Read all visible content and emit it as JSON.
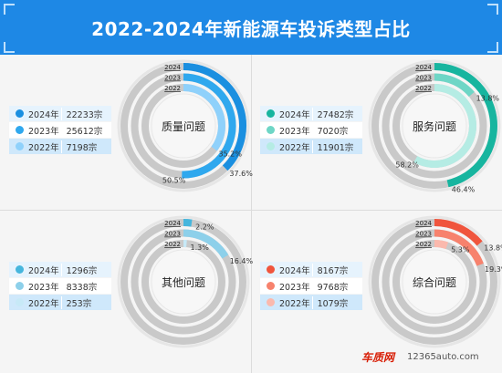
{
  "title": "2022-2024年新能源车投诉类型占比",
  "footer": {
    "logo": "车质网",
    "url": "12365auto.com"
  },
  "chart_data": [
    {
      "type": "pie",
      "center_label": "质量问题",
      "ring_labels": [
        "2024",
        "2023",
        "2022"
      ],
      "legend": [
        {
          "year": "2024年",
          "value": "22233宗"
        },
        {
          "year": "2023年",
          "value": "25612宗"
        },
        {
          "year": "2022年",
          "value": "7198宗"
        }
      ],
      "colors": [
        "#1a8fe0",
        "#2fa8ee",
        "#8fd1fb"
      ],
      "series": [
        {
          "year": "2024",
          "count": 22233,
          "percent": 37.6,
          "label": "37.6%"
        },
        {
          "year": "2023",
          "count": 25612,
          "percent": 50.5,
          "label": "50.5%"
        },
        {
          "year": "2022",
          "count": 7198,
          "percent": 35.2,
          "label": "35.2%"
        }
      ]
    },
    {
      "type": "pie",
      "center_label": "服务问题",
      "ring_labels": [
        "2024",
        "2023",
        "2022"
      ],
      "legend": [
        {
          "year": "2024年",
          "value": "27482宗"
        },
        {
          "year": "2023年",
          "value": "7020宗"
        },
        {
          "year": "2022年",
          "value": "11901宗"
        }
      ],
      "colors": [
        "#17b59f",
        "#6ed6c6",
        "#b5ece4"
      ],
      "series": [
        {
          "year": "2024",
          "count": 27482,
          "percent": 46.4,
          "label": "46.4%"
        },
        {
          "year": "2023",
          "count": 7020,
          "percent": 13.8,
          "label": "13.8%"
        },
        {
          "year": "2022",
          "count": 11901,
          "percent": 58.2,
          "label": "58.2%"
        }
      ]
    },
    {
      "type": "pie",
      "center_label": "其他问题",
      "ring_labels": [
        "2024",
        "2023",
        "2022"
      ],
      "legend": [
        {
          "year": "2024年",
          "value": "1296宗"
        },
        {
          "year": "2023年",
          "value": "8338宗"
        },
        {
          "year": "2022年",
          "value": "253宗"
        }
      ],
      "colors": [
        "#46b6dd",
        "#8dd0ea",
        "#c7e9f7"
      ],
      "series": [
        {
          "year": "2024",
          "count": 1296,
          "percent": 2.2,
          "label": "2.2%"
        },
        {
          "year": "2023",
          "count": 8338,
          "percent": 16.4,
          "label": "16.4%"
        },
        {
          "year": "2022",
          "count": 253,
          "percent": 1.3,
          "label": "1.3%"
        }
      ]
    },
    {
      "type": "pie",
      "center_label": "综合问题",
      "ring_labels": [
        "2024",
        "2023",
        "2022"
      ],
      "legend": [
        {
          "year": "2024年",
          "value": "8167宗"
        },
        {
          "year": "2023年",
          "value": "9768宗"
        },
        {
          "year": "2022年",
          "value": "1079宗"
        }
      ],
      "colors": [
        "#f0553d",
        "#f7826d",
        "#fbb9ad"
      ],
      "series": [
        {
          "year": "2024",
          "count": 8167,
          "percent": 13.8,
          "label": "13.8%"
        },
        {
          "year": "2023",
          "count": 9768,
          "percent": 19.3,
          "label": "19.3%"
        },
        {
          "year": "2022",
          "count": 1079,
          "percent": 5.3,
          "label": "5.3%"
        }
      ]
    }
  ]
}
